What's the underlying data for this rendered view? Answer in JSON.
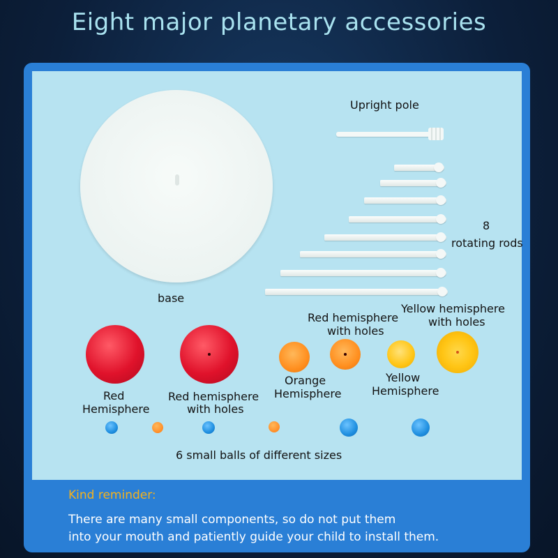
{
  "title": "Eight major planetary accessories",
  "labels": {
    "upright_pole": "Upright pole",
    "rods_count": "8",
    "rods": "rotating rods",
    "base": "base",
    "red_hemisphere_holes_top_1": "Red hemisphere",
    "red_hemisphere_holes_top_2": "with holes",
    "yellow_hemisphere_holes_1": "Yellow hemisphere",
    "yellow_hemisphere_holes_2": "with holes",
    "red_hemisphere_1": "Red",
    "red_hemisphere_2": "Hemisphere",
    "red_hemisphere_holes_1": "Red hemisphere",
    "red_hemisphere_holes_2": "with holes",
    "orange_hemisphere_1": "Orange",
    "orange_hemisphere_2": "Hemisphere",
    "yellow_hemisphere_1": "Yellow",
    "yellow_hemisphere_2": "Hemisphere",
    "small_balls": "6 small balls of different sizes"
  },
  "reminder": {
    "heading": "Kind reminder:",
    "line1": "There are many small components, so do not put them",
    "line2": "into your mouth and patiently guide your child to install them."
  },
  "colors": {
    "title": "#a9e2ef",
    "panel": "#2a7fd6",
    "panel_inner": "#b7e3f1",
    "reminder_heading": "#f5b21c",
    "red": "#e0122b",
    "orange": "#ff8f1f",
    "yellow": "#ffc515",
    "blue": "#1f8fe0"
  }
}
